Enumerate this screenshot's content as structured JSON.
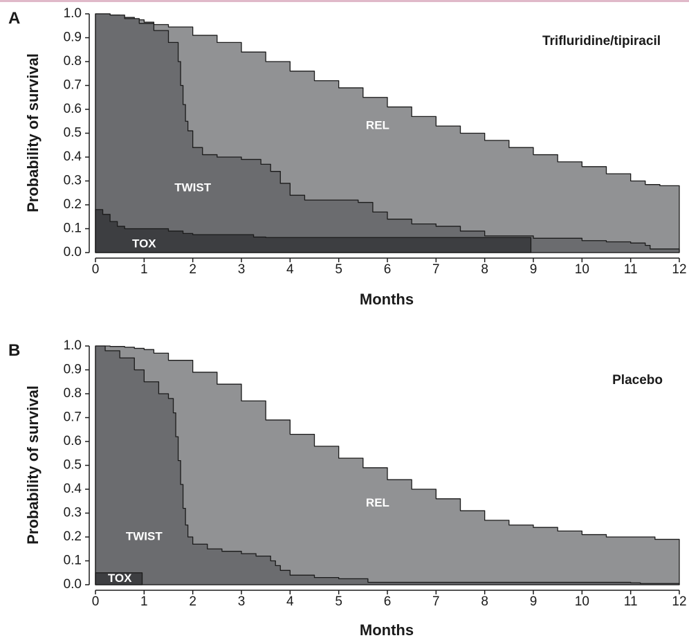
{
  "chart_data": [
    {
      "type": "area",
      "panel_label": "A",
      "title": "Trifluridine/tipiracil",
      "xlabel": "Months",
      "ylabel": "Probability of survival",
      "xlim": [
        0,
        12
      ],
      "ylim": [
        0,
        1.0
      ],
      "x_ticks": [
        "0",
        "1",
        "2",
        "3",
        "4",
        "5",
        "6",
        "7",
        "8",
        "9",
        "10",
        "11",
        "12"
      ],
      "y_ticks": [
        "0.0",
        "0.1",
        "0.2",
        "0.3",
        "0.4",
        "0.5",
        "0.6",
        "0.7",
        "0.8",
        "0.9",
        "1.0"
      ],
      "colors": {
        "REL": "#919294",
        "TWIST": "#6b6c6f",
        "TOX": "#3d3e41",
        "outline": "#1a1a1a"
      },
      "series": [
        {
          "name": "REL",
          "label": "REL",
          "x": [
            0,
            0.3,
            0.5,
            0.8,
            1.0,
            1.2,
            1.5,
            2.0,
            2.5,
            3.0,
            3.5,
            4.0,
            4.5,
            5.0,
            5.5,
            6.0,
            6.5,
            7.0,
            7.5,
            8.0,
            8.5,
            9.0,
            9.5,
            10.0,
            10.5,
            11.0,
            11.3,
            11.6,
            12.0
          ],
          "values": [
            1.0,
            0.995,
            0.985,
            0.975,
            0.965,
            0.955,
            0.945,
            0.91,
            0.88,
            0.84,
            0.8,
            0.76,
            0.72,
            0.69,
            0.65,
            0.61,
            0.57,
            0.53,
            0.5,
            0.47,
            0.44,
            0.41,
            0.38,
            0.36,
            0.33,
            0.3,
            0.285,
            0.28,
            0.265
          ]
        },
        {
          "name": "TWIST",
          "label": "TWIST",
          "x": [
            0,
            0.3,
            0.6,
            0.9,
            1.2,
            1.5,
            1.7,
            1.75,
            1.8,
            1.85,
            1.9,
            2.0,
            2.2,
            2.5,
            3.0,
            3.4,
            3.6,
            3.8,
            4.0,
            4.3,
            5.0,
            5.4,
            5.7,
            6.0,
            6.5,
            7.0,
            7.5,
            8.0,
            9.0,
            10.0,
            10.5,
            11.0,
            11.3,
            11.4,
            12.0
          ],
          "values": [
            1.0,
            0.995,
            0.98,
            0.96,
            0.93,
            0.88,
            0.8,
            0.7,
            0.62,
            0.55,
            0.51,
            0.44,
            0.41,
            0.4,
            0.39,
            0.37,
            0.34,
            0.29,
            0.24,
            0.22,
            0.22,
            0.21,
            0.17,
            0.14,
            0.12,
            0.11,
            0.09,
            0.07,
            0.06,
            0.05,
            0.045,
            0.04,
            0.03,
            0.015,
            0.015
          ]
        },
        {
          "name": "TOX",
          "label": "TOX",
          "x": [
            0,
            0.15,
            0.3,
            0.45,
            0.6,
            1.0,
            1.5,
            1.8,
            2.0,
            2.5,
            3.0,
            3.25,
            3.5,
            5.0,
            7.0,
            8.9,
            8.95
          ],
          "values": [
            0.18,
            0.16,
            0.13,
            0.11,
            0.1,
            0.1,
            0.09,
            0.08,
            0.075,
            0.075,
            0.075,
            0.065,
            0.063,
            0.063,
            0.063,
            0.063,
            0.0
          ]
        }
      ]
    },
    {
      "type": "area",
      "panel_label": "B",
      "title": "Placebo",
      "xlabel": "Months",
      "ylabel": "Probability of survival",
      "xlim": [
        0,
        12
      ],
      "ylim": [
        0,
        1.0
      ],
      "x_ticks": [
        "0",
        "1",
        "2",
        "3",
        "4",
        "5",
        "6",
        "7",
        "8",
        "9",
        "10",
        "11",
        "12"
      ],
      "y_ticks": [
        "0.0",
        "0.1",
        "0.2",
        "0.3",
        "0.4",
        "0.5",
        "0.6",
        "0.7",
        "0.8",
        "0.9",
        "1.0"
      ],
      "colors": {
        "REL": "#919294",
        "TWIST": "#6b6c6f",
        "TOX": "#3d3e41",
        "outline": "#1a1a1a"
      },
      "series": [
        {
          "name": "REL",
          "label": "REL",
          "x": [
            0,
            0.3,
            0.6,
            0.8,
            1.0,
            1.2,
            1.5,
            2.0,
            2.5,
            3.0,
            3.5,
            4.0,
            4.5,
            5.0,
            5.5,
            6.0,
            6.5,
            7.0,
            7.5,
            8.0,
            8.5,
            9.0,
            9.5,
            10.0,
            10.5,
            11.0,
            11.5,
            12.0
          ],
          "values": [
            1.0,
            0.998,
            0.995,
            0.99,
            0.985,
            0.97,
            0.94,
            0.89,
            0.84,
            0.77,
            0.69,
            0.63,
            0.58,
            0.53,
            0.49,
            0.44,
            0.4,
            0.36,
            0.31,
            0.27,
            0.25,
            0.24,
            0.225,
            0.21,
            0.2,
            0.2,
            0.19,
            0.18
          ]
        },
        {
          "name": "TWIST",
          "label": "TWIST",
          "x": [
            0,
            0.2,
            0.5,
            0.8,
            1.0,
            1.3,
            1.5,
            1.6,
            1.65,
            1.7,
            1.75,
            1.8,
            1.85,
            1.9,
            2.0,
            2.3,
            2.6,
            3.0,
            3.3,
            3.6,
            3.7,
            3.8,
            4.0,
            4.5,
            5.0,
            5.4,
            5.6,
            6.0,
            7.0,
            8.0,
            9.0,
            10.0,
            11.0,
            11.2,
            12.0
          ],
          "values": [
            1.0,
            0.98,
            0.95,
            0.9,
            0.85,
            0.8,
            0.78,
            0.72,
            0.62,
            0.52,
            0.42,
            0.32,
            0.25,
            0.2,
            0.17,
            0.15,
            0.14,
            0.13,
            0.12,
            0.1,
            0.08,
            0.06,
            0.04,
            0.03,
            0.025,
            0.025,
            0.01,
            0.01,
            0.01,
            0.01,
            0.01,
            0.01,
            0.008,
            0.005,
            0.005
          ]
        },
        {
          "name": "TOX",
          "label": "TOX",
          "x": [
            0,
            0.95,
            0.96
          ],
          "values": [
            0.05,
            0.05,
            0.0
          ]
        }
      ]
    }
  ]
}
